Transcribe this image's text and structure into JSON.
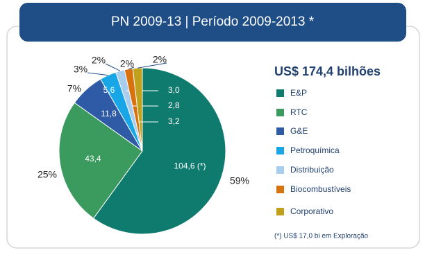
{
  "chart_data": {
    "type": "pie",
    "title": "PN 2009-13 | Período 2009-2013 *",
    "total_label": "US$ 174,4 bilhões",
    "footnote": "(*) US$ 17,0 bi em Exploração",
    "categories": [
      "E&P",
      "RTC",
      "G&E",
      "Petroquímica",
      "Distribuição",
      "Biocombustíveis",
      "Corporativo"
    ],
    "values": [
      104.6,
      43.4,
      11.8,
      5.6,
      3.0,
      2.8,
      3.2
    ],
    "value_labels": [
      "104,6 (*)",
      "43,4",
      "11,8",
      "5,6",
      "3,0",
      "2,8",
      "3,2"
    ],
    "percent_labels": [
      "59%",
      "25%",
      "7%",
      "3%",
      "2%",
      "2%",
      "2%"
    ],
    "colors": [
      "#0f7b6f",
      "#3b9a5e",
      "#2f5ba6",
      "#19a6e6",
      "#a9cdee",
      "#d8720f",
      "#c1a11b"
    ]
  }
}
